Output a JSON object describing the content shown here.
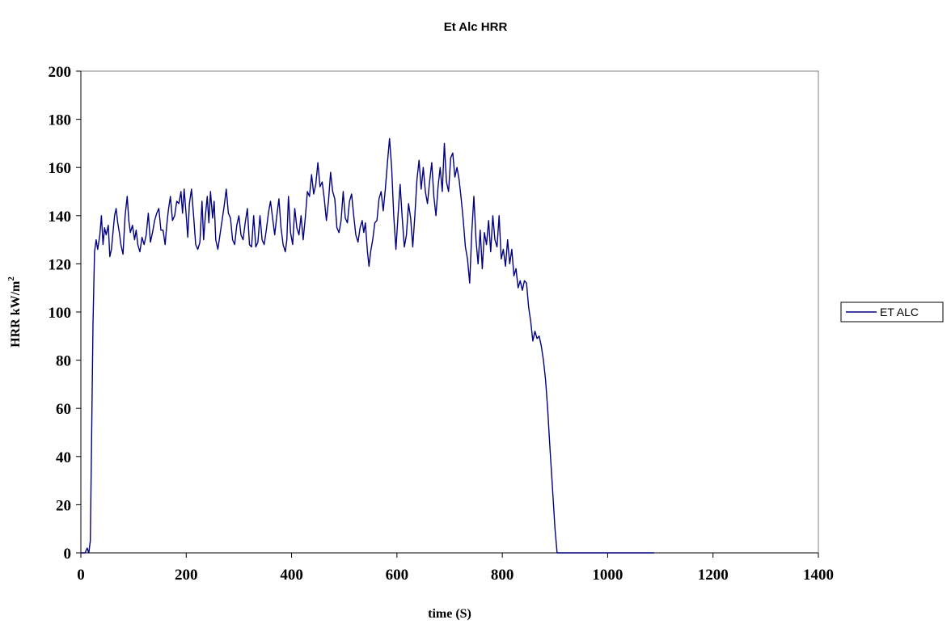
{
  "chart_data": {
    "type": "line",
    "title": "Et Alc HRR",
    "xlabel": "time (S)",
    "ylabel_main": "HRR kW/m",
    "ylabel_sup": "2",
    "xlim": [
      0,
      1400
    ],
    "ylim": [
      0,
      200
    ],
    "x_ticks": [
      0,
      200,
      400,
      600,
      800,
      1000,
      1200,
      1400
    ],
    "y_ticks": [
      0,
      20,
      40,
      60,
      80,
      100,
      120,
      140,
      160,
      180,
      200
    ],
    "grid": false,
    "legend_position": "right",
    "series": [
      {
        "name": "ET ALC",
        "color": "#000080",
        "points": [
          [
            0,
            0
          ],
          [
            8,
            0
          ],
          [
            12,
            2
          ],
          [
            15,
            0
          ],
          [
            18,
            5
          ],
          [
            20,
            40
          ],
          [
            23,
            95
          ],
          [
            26,
            125
          ],
          [
            29,
            130
          ],
          [
            32,
            126
          ],
          [
            36,
            132
          ],
          [
            39,
            140
          ],
          [
            42,
            128
          ],
          [
            45,
            135
          ],
          [
            48,
            132
          ],
          [
            52,
            136
          ],
          [
            55,
            123
          ],
          [
            58,
            126
          ],
          [
            61,
            133
          ],
          [
            64,
            140
          ],
          [
            67,
            143
          ],
          [
            70,
            137
          ],
          [
            73,
            133
          ],
          [
            76,
            128
          ],
          [
            80,
            124
          ],
          [
            84,
            140
          ],
          [
            88,
            148
          ],
          [
            91,
            138
          ],
          [
            94,
            133
          ],
          [
            98,
            136
          ],
          [
            102,
            130
          ],
          [
            105,
            134
          ],
          [
            108,
            128
          ],
          [
            112,
            125
          ],
          [
            116,
            131
          ],
          [
            120,
            128
          ],
          [
            124,
            132
          ],
          [
            128,
            141
          ],
          [
            132,
            129
          ],
          [
            136,
            133
          ],
          [
            140,
            138
          ],
          [
            144,
            141
          ],
          [
            148,
            143
          ],
          [
            152,
            134
          ],
          [
            156,
            134
          ],
          [
            160,
            128
          ],
          [
            163,
            136
          ],
          [
            166,
            142
          ],
          [
            170,
            148
          ],
          [
            174,
            138
          ],
          [
            178,
            140
          ],
          [
            182,
            146
          ],
          [
            186,
            145
          ],
          [
            190,
            150
          ],
          [
            193,
            141
          ],
          [
            196,
            151
          ],
          [
            200,
            140
          ],
          [
            203,
            131
          ],
          [
            206,
            145
          ],
          [
            210,
            151
          ],
          [
            214,
            140
          ],
          [
            218,
            128
          ],
          [
            222,
            126
          ],
          [
            226,
            129
          ],
          [
            230,
            146
          ],
          [
            233,
            130
          ],
          [
            236,
            139
          ],
          [
            240,
            148
          ],
          [
            243,
            137
          ],
          [
            246,
            150
          ],
          [
            250,
            139
          ],
          [
            253,
            146
          ],
          [
            256,
            130
          ],
          [
            260,
            126
          ],
          [
            264,
            132
          ],
          [
            268,
            138
          ],
          [
            272,
            144
          ],
          [
            276,
            151
          ],
          [
            280,
            141
          ],
          [
            284,
            139
          ],
          [
            288,
            130
          ],
          [
            292,
            128
          ],
          [
            296,
            136
          ],
          [
            300,
            140
          ],
          [
            304,
            132
          ],
          [
            308,
            130
          ],
          [
            312,
            137
          ],
          [
            316,
            143
          ],
          [
            320,
            128
          ],
          [
            324,
            127
          ],
          [
            328,
            140
          ],
          [
            332,
            127
          ],
          [
            336,
            129
          ],
          [
            340,
            140
          ],
          [
            344,
            130
          ],
          [
            348,
            128
          ],
          [
            352,
            134
          ],
          [
            356,
            141
          ],
          [
            360,
            146
          ],
          [
            364,
            139
          ],
          [
            368,
            132
          ],
          [
            372,
            140
          ],
          [
            376,
            147
          ],
          [
            380,
            135
          ],
          [
            384,
            128
          ],
          [
            388,
            125
          ],
          [
            391,
            130
          ],
          [
            394,
            148
          ],
          [
            398,
            133
          ],
          [
            402,
            128
          ],
          [
            406,
            143
          ],
          [
            410,
            135
          ],
          [
            414,
            132
          ],
          [
            418,
            140
          ],
          [
            422,
            130
          ],
          [
            426,
            139
          ],
          [
            430,
            150
          ],
          [
            434,
            148
          ],
          [
            438,
            157
          ],
          [
            442,
            149
          ],
          [
            446,
            153
          ],
          [
            450,
            162
          ],
          [
            454,
            152
          ],
          [
            458,
            154
          ],
          [
            462,
            147
          ],
          [
            466,
            138
          ],
          [
            470,
            146
          ],
          [
            474,
            158
          ],
          [
            478,
            150
          ],
          [
            482,
            147
          ],
          [
            486,
            135
          ],
          [
            490,
            133
          ],
          [
            494,
            138
          ],
          [
            498,
            150
          ],
          [
            502,
            139
          ],
          [
            506,
            137
          ],
          [
            510,
            146
          ],
          [
            514,
            149
          ],
          [
            518,
            140
          ],
          [
            522,
            132
          ],
          [
            526,
            129
          ],
          [
            530,
            135
          ],
          [
            534,
            138
          ],
          [
            537,
            133
          ],
          [
            540,
            137
          ],
          [
            544,
            125
          ],
          [
            547,
            119
          ],
          [
            550,
            125
          ],
          [
            554,
            130
          ],
          [
            558,
            137
          ],
          [
            562,
            138
          ],
          [
            566,
            147
          ],
          [
            570,
            150
          ],
          [
            574,
            142
          ],
          [
            578,
            151
          ],
          [
            582,
            162
          ],
          [
            586,
            172
          ],
          [
            590,
            160
          ],
          [
            594,
            140
          ],
          [
            598,
            126
          ],
          [
            602,
            140
          ],
          [
            606,
            153
          ],
          [
            610,
            139
          ],
          [
            614,
            127
          ],
          [
            618,
            132
          ],
          [
            622,
            145
          ],
          [
            626,
            139
          ],
          [
            630,
            127
          ],
          [
            634,
            140
          ],
          [
            638,
            155
          ],
          [
            642,
            163
          ],
          [
            646,
            151
          ],
          [
            650,
            160
          ],
          [
            654,
            150
          ],
          [
            658,
            145
          ],
          [
            662,
            154
          ],
          [
            666,
            162
          ],
          [
            670,
            148
          ],
          [
            674,
            140
          ],
          [
            678,
            152
          ],
          [
            682,
            160
          ],
          [
            686,
            150
          ],
          [
            690,
            170
          ],
          [
            694,
            154
          ],
          [
            698,
            150
          ],
          [
            702,
            164
          ],
          [
            706,
            166
          ],
          [
            710,
            156
          ],
          [
            714,
            160
          ],
          [
            718,
            155
          ],
          [
            722,
            147
          ],
          [
            726,
            138
          ],
          [
            730,
            127
          ],
          [
            734,
            122
          ],
          [
            738,
            112
          ],
          [
            742,
            133
          ],
          [
            746,
            148
          ],
          [
            750,
            130
          ],
          [
            754,
            120
          ],
          [
            758,
            134
          ],
          [
            762,
            118
          ],
          [
            766,
            133
          ],
          [
            770,
            128
          ],
          [
            774,
            138
          ],
          [
            778,
            125
          ],
          [
            782,
            140
          ],
          [
            786,
            130
          ],
          [
            790,
            127
          ],
          [
            794,
            140
          ],
          [
            798,
            122
          ],
          [
            802,
            126
          ],
          [
            806,
            119
          ],
          [
            810,
            130
          ],
          [
            814,
            120
          ],
          [
            818,
            126
          ],
          [
            822,
            115
          ],
          [
            826,
            118
          ],
          [
            830,
            110
          ],
          [
            834,
            113
          ],
          [
            838,
            109
          ],
          [
            842,
            113
          ],
          [
            846,
            112
          ],
          [
            850,
            102
          ],
          [
            854,
            96
          ],
          [
            858,
            88
          ],
          [
            862,
            92
          ],
          [
            866,
            89
          ],
          [
            870,
            90
          ],
          [
            874,
            86
          ],
          [
            878,
            80
          ],
          [
            882,
            72
          ],
          [
            886,
            60
          ],
          [
            890,
            45
          ],
          [
            895,
            28
          ],
          [
            900,
            10
          ],
          [
            904,
            0
          ],
          [
            950,
            0
          ],
          [
            1000,
            0
          ],
          [
            1050,
            0
          ],
          [
            1088,
            0
          ]
        ]
      }
    ]
  }
}
